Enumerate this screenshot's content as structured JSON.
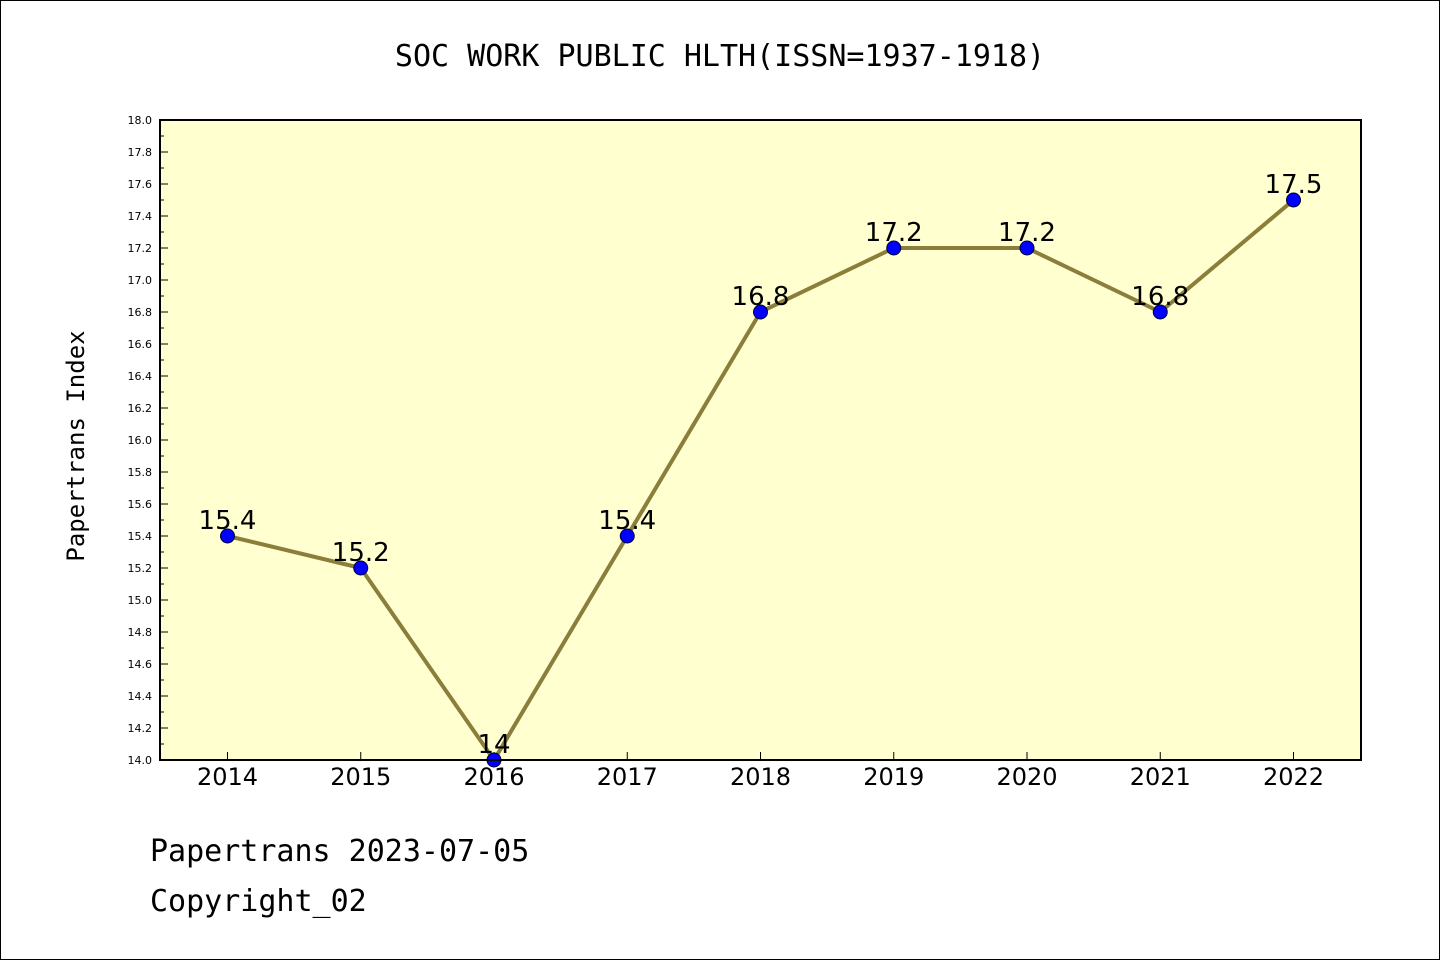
{
  "chart_data": {
    "type": "line",
    "title": "SOC WORK PUBLIC HLTH(ISSN=1937-1918)",
    "xlabel": "",
    "ylabel": "Papertrans Index",
    "x": [
      2014,
      2015,
      2016,
      2017,
      2018,
      2019,
      2020,
      2021,
      2022
    ],
    "series": [
      {
        "values": [
          15.4,
          15.2,
          14,
          15.4,
          16.8,
          17.2,
          17.2,
          16.8,
          17.5
        ],
        "labels": [
          "15.4",
          "15.2",
          "14",
          "15.4",
          "16.8",
          "17.2",
          "17.2",
          "16.8",
          "17.5"
        ]
      }
    ],
    "ylim": [
      14.0,
      18.0
    ],
    "yticks": [
      "14.0",
      "14.2",
      "14.4",
      "14.6",
      "14.8",
      "15.0",
      "15.2",
      "15.4",
      "15.6",
      "15.8",
      "16.0",
      "16.2",
      "16.4",
      "16.6",
      "16.8",
      "17.0",
      "17.2",
      "17.4",
      "17.6",
      "17.8",
      "18.0"
    ],
    "grid": false,
    "legend": "none",
    "colors": {
      "plot_background": "#ffffd0",
      "line": "#8b7d3a",
      "marker": "#0000ff"
    }
  },
  "footer": {
    "date_text": "Papertrans 2023-07-05",
    "copyright_text": "Copyright_02"
  }
}
